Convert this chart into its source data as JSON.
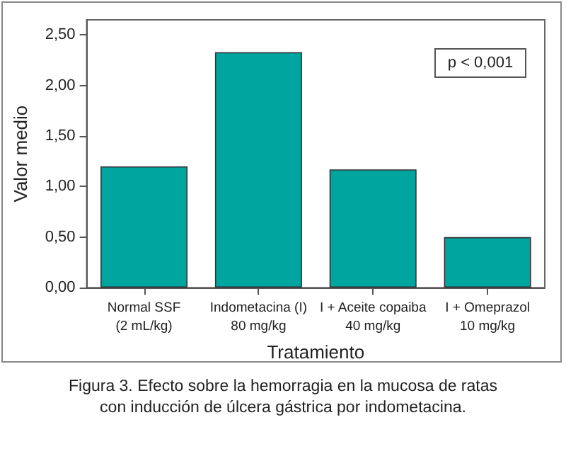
{
  "chart_data": {
    "type": "bar",
    "xlabel": "Tratamiento",
    "ylabel": "Valor medio",
    "categories": [
      "Normal SSF\n(2 mL/kg)",
      "Indometacina (I)\n80 mg/kg",
      "I + Aceite copaiba\n40 mg/kg",
      "I + Omeprazol\n10 mg/kg"
    ],
    "values": [
      1.2,
      2.33,
      1.17,
      0.5
    ],
    "color": "#00a5a0",
    "ylim": [
      0,
      2.65
    ],
    "yticks": [
      {
        "value": 0,
        "label": "0,00"
      },
      {
        "value": 0.5,
        "label": "0,50"
      },
      {
        "value": 1,
        "label": "1,00"
      },
      {
        "value": 1.5,
        "label": "1,50"
      },
      {
        "value": 2,
        "label": "2,00"
      },
      {
        "value": 2.5,
        "label": "2,50"
      }
    ],
    "grid": false,
    "annotations": [
      "p < 0,001",
      "Figura 3. Efecto sobre la hemorragia en la mucosa de ratas\ncon inducción de úlcera gástrica por indometacina."
    ]
  }
}
